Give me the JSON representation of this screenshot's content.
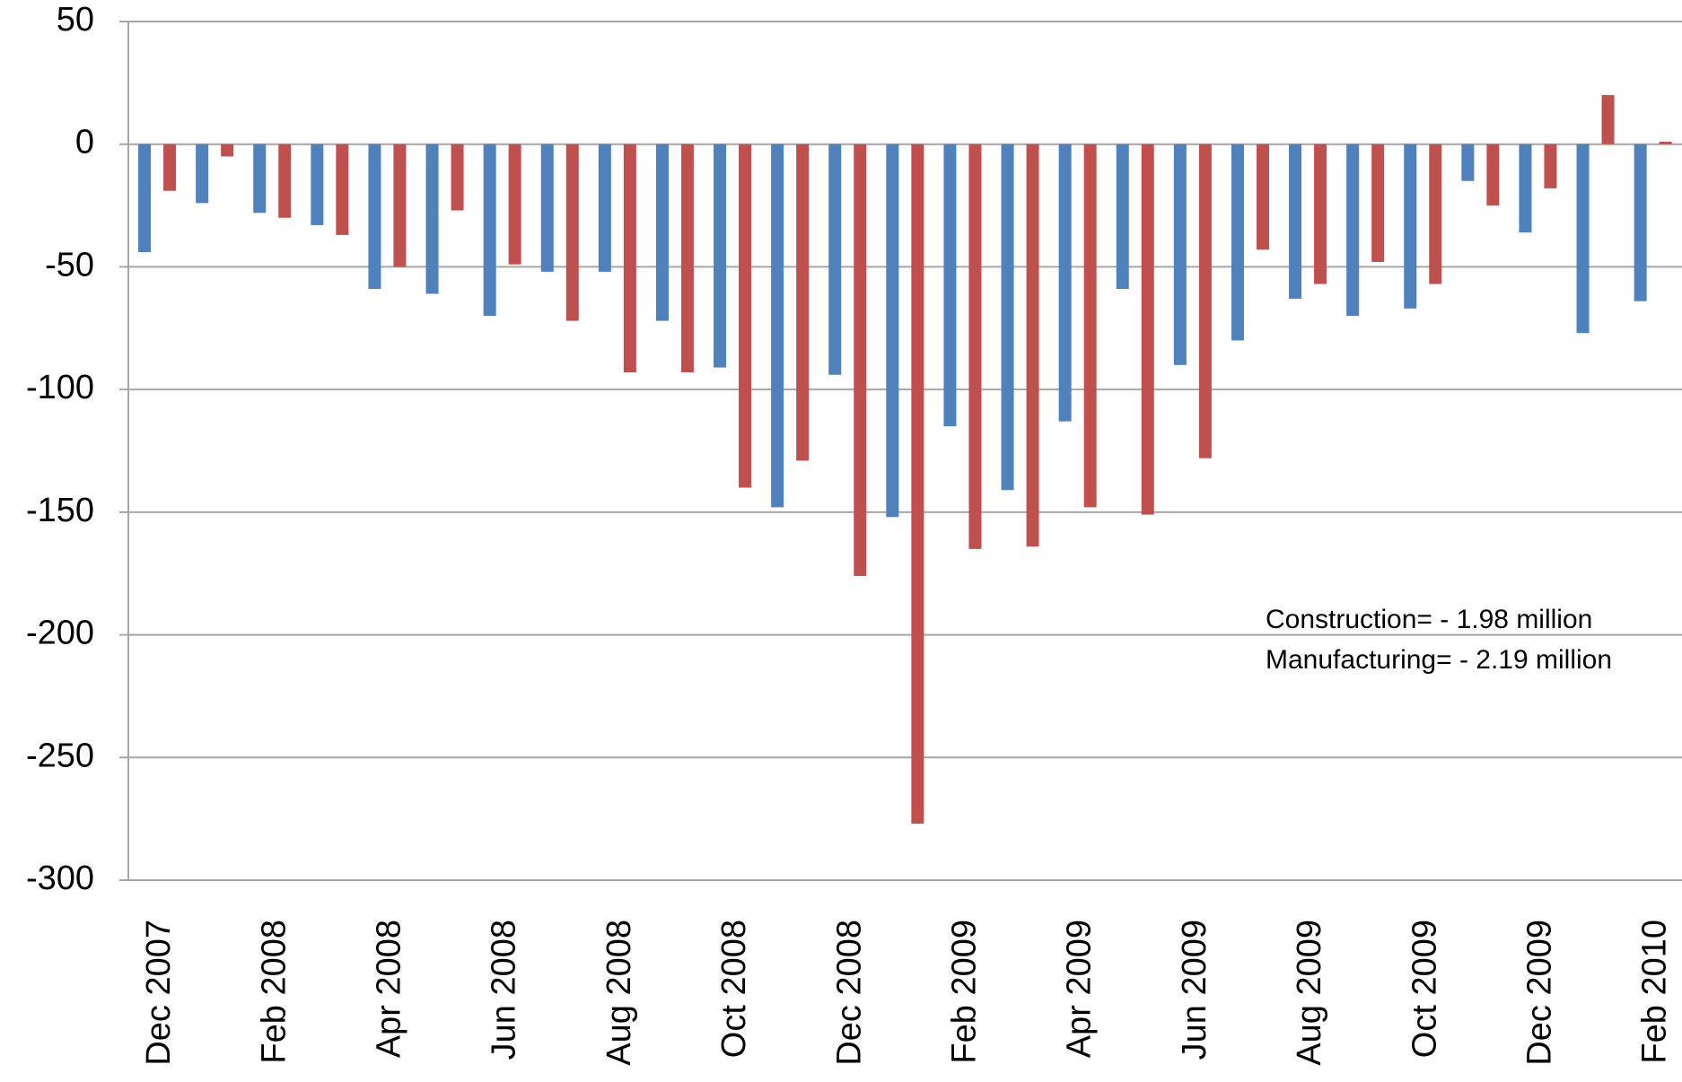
{
  "chart_data": {
    "type": "bar",
    "categories": [
      "Dec 2007",
      null,
      "Feb 2008",
      null,
      "Apr 2008",
      null,
      "Jun 2008",
      null,
      "Aug 2008",
      null,
      "Oct 2008",
      null,
      "Dec 2008",
      null,
      "Feb 2009",
      null,
      "Apr 2009",
      null,
      "Jun 2009",
      null,
      "Aug 2009",
      null,
      "Oct 2009",
      null,
      "Dec 2009",
      null,
      "Feb 2010"
    ],
    "series": [
      {
        "color": "#4f81bd",
        "values": [
          -44,
          -24,
          -28,
          -33,
          -59,
          -61,
          -70,
          -52,
          -52,
          -72,
          -91,
          -148,
          -94,
          -152,
          -115,
          -141,
          -113,
          -59,
          -90,
          -80,
          -63,
          -70,
          -67,
          -15,
          -36,
          -77,
          -64
        ]
      },
      {
        "color": "#c0504d",
        "values": [
          -19,
          -5,
          -30,
          -37,
          -50,
          -27,
          -49,
          -72,
          -93,
          -93,
          -140,
          -129,
          -176,
          -277,
          -165,
          -164,
          -148,
          -151,
          -128,
          -43,
          -57,
          -48,
          -57,
          -25,
          -18,
          20,
          1
        ]
      }
    ],
    "annotations": [
      "Construction= - 1.98 million",
      "Manufacturing= - 2.19 million"
    ],
    "ylim": [
      -300,
      50
    ],
    "yticks": [
      -300,
      -250,
      -200,
      -150,
      -100,
      -50,
      0,
      50
    ],
    "grid": true
  }
}
